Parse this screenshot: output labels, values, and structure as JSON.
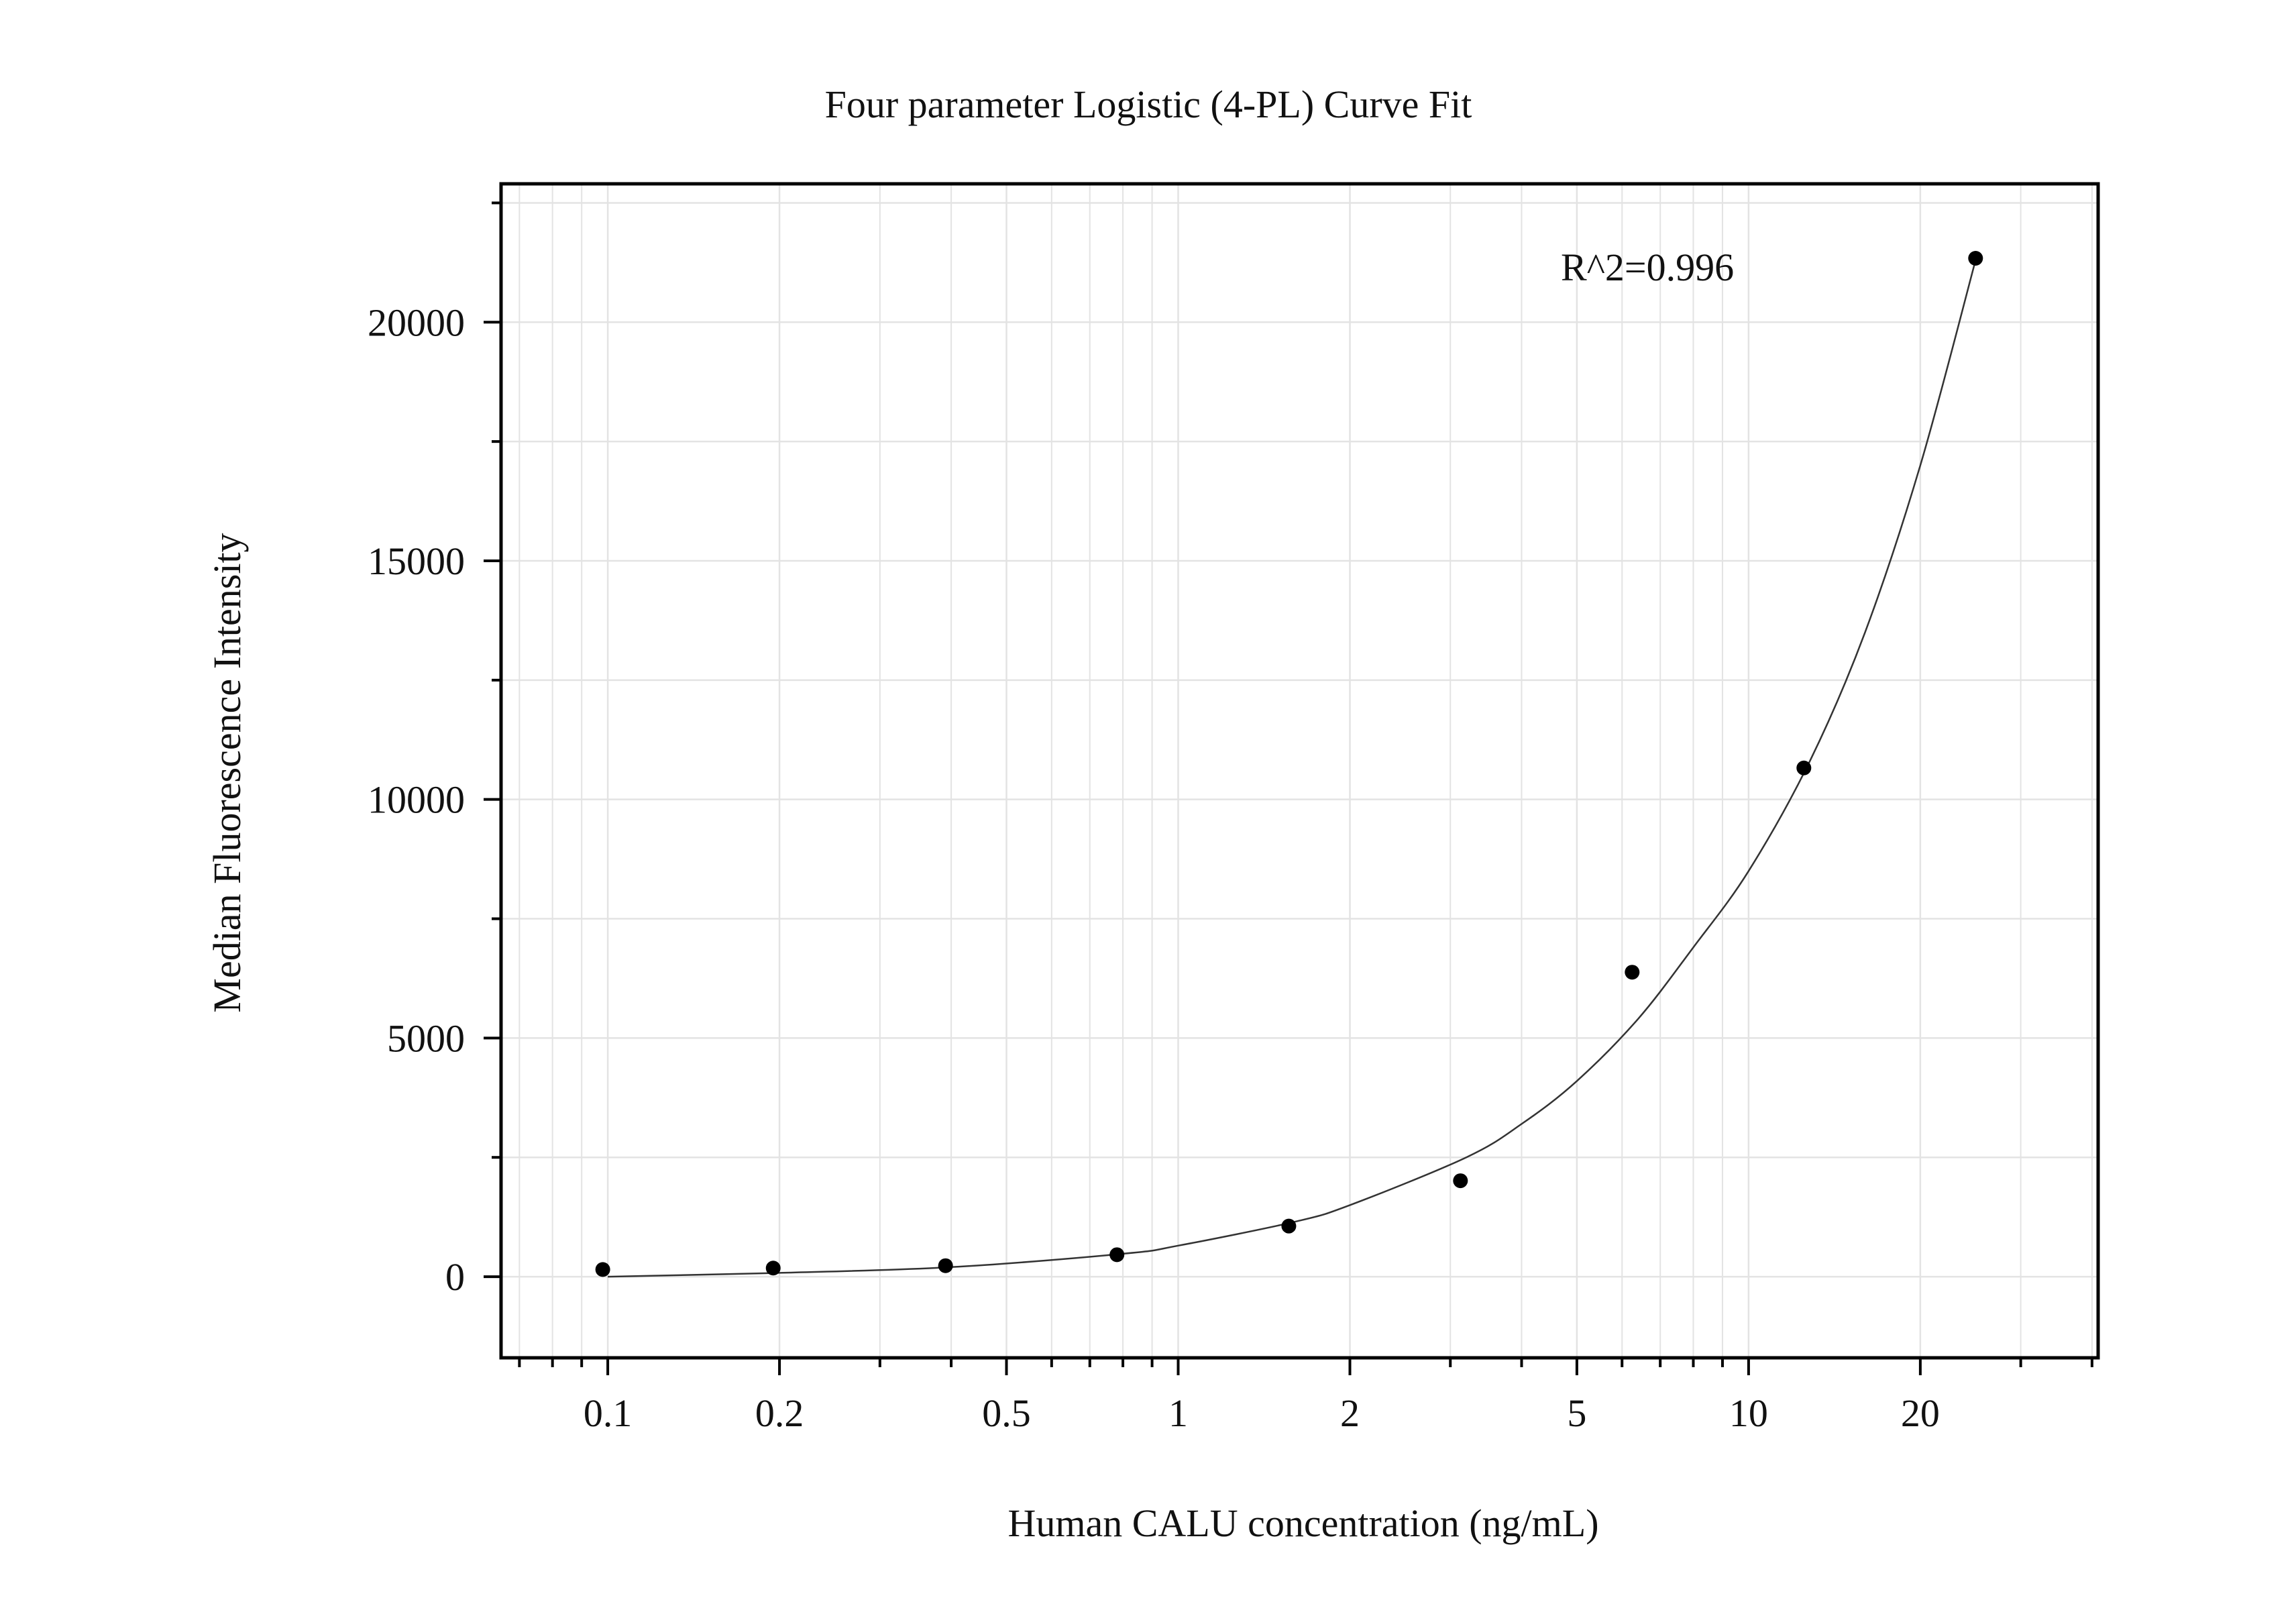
{
  "chart_data": {
    "type": "scatter",
    "title": "Four parameter Logistic (4-PL) Curve Fit",
    "xlabel": "Human CALU concentration (ng/mL)",
    "ylabel": "Median Fluorescence Intensity",
    "x_scale": "log",
    "xlim": [
      0.065,
      41
    ],
    "ylim": [
      -1700,
      22900
    ],
    "x_tick_labels": [
      "0.1",
      "0.2",
      "0.5",
      "1",
      "2",
      "5",
      "10",
      "20"
    ],
    "y_tick_labels": [
      "0",
      "5000",
      "10000",
      "15000",
      "20000"
    ],
    "grid": true,
    "annotation": "R^2=0.996",
    "series": [
      {
        "type": "scatter",
        "x": [
          0.098,
          0.195,
          0.391,
          0.781,
          1.563,
          3.125,
          6.25,
          12.5,
          25
        ],
        "y": [
          150,
          180,
          230,
          460,
          1060,
          2010,
          6380,
          10660,
          21340
        ]
      },
      {
        "type": "line",
        "x": [
          0.1,
          0.2,
          0.4,
          0.8,
          1.0,
          1.6,
          2.0,
          3.2,
          4.0,
          5.0,
          6.4,
          8.0,
          10.0,
          12.8,
          16.0,
          20.0,
          25.0
        ],
        "y": [
          0,
          80,
          200,
          480,
          650,
          1150,
          1500,
          2500,
          3200,
          4100,
          5400,
          6900,
          8500,
          10800,
          13500,
          17000,
          21300
        ]
      }
    ],
    "colors": {
      "points": "#000000",
      "curve": "#333333",
      "grid": "#e3e3e3",
      "frame": "#000000"
    }
  }
}
